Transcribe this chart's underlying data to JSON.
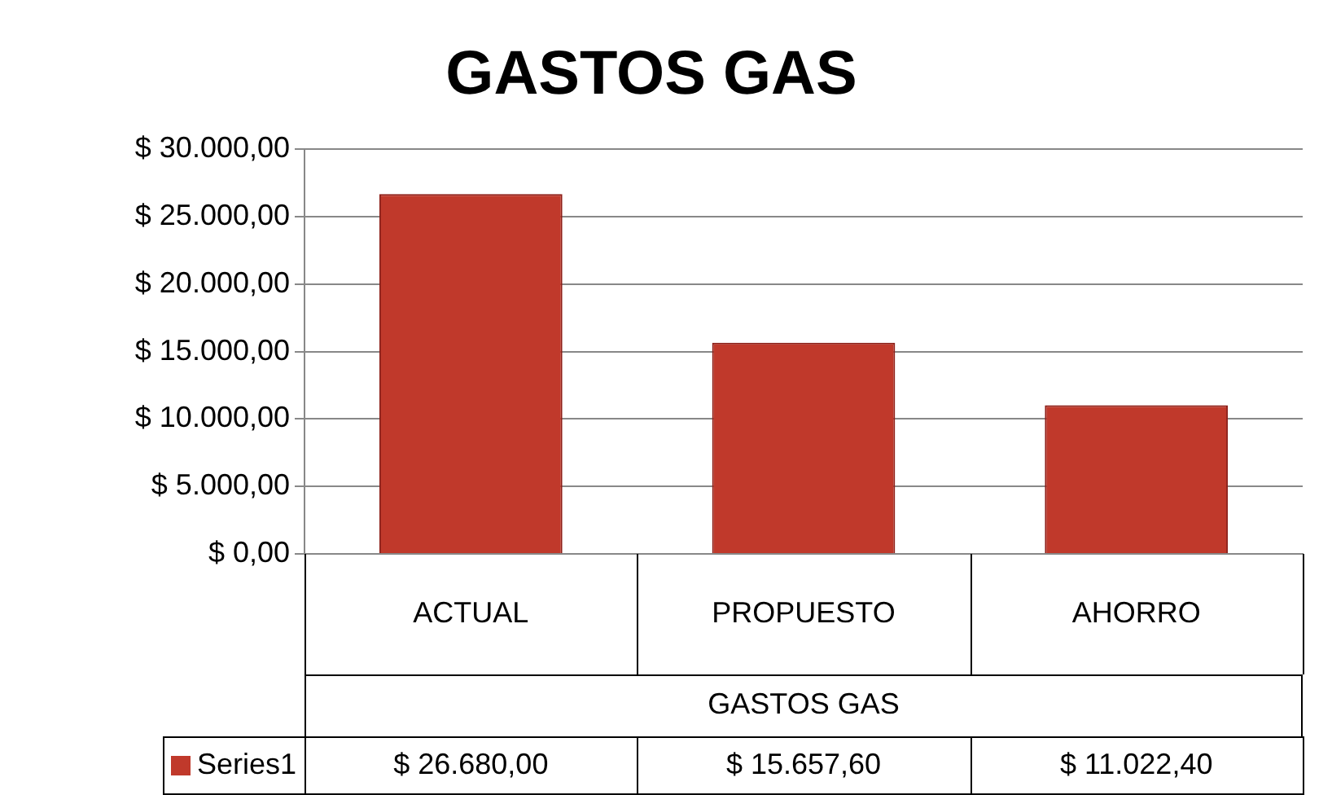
{
  "chart_data": {
    "type": "bar",
    "title": "GASTOS GAS",
    "xlabel": "GASTOS GAS",
    "categories": [
      "ACTUAL",
      "PROPUESTO",
      "AHORRO"
    ],
    "series": [
      {
        "name": "Series1",
        "color": "#c0392b",
        "values": [
          26680,
          15657.6,
          11022.4
        ],
        "value_labels": [
          "$ 26.680,00",
          "$ 15.657,60",
          "$ 11.022,40"
        ]
      }
    ],
    "ylim": [
      0,
      30000
    ],
    "yticks": [
      {
        "value": 0,
        "label": "$ 0,00"
      },
      {
        "value": 5000,
        "label": "$ 5.000,00"
      },
      {
        "value": 10000,
        "label": "$ 10.000,00"
      },
      {
        "value": 15000,
        "label": "$ 15.000,00"
      },
      {
        "value": 20000,
        "label": "$ 20.000,00"
      },
      {
        "value": 25000,
        "label": "$ 25.000,00"
      },
      {
        "value": 30000,
        "label": "$ 30.000,00"
      }
    ],
    "grid": "y",
    "legend": "bottom left"
  }
}
